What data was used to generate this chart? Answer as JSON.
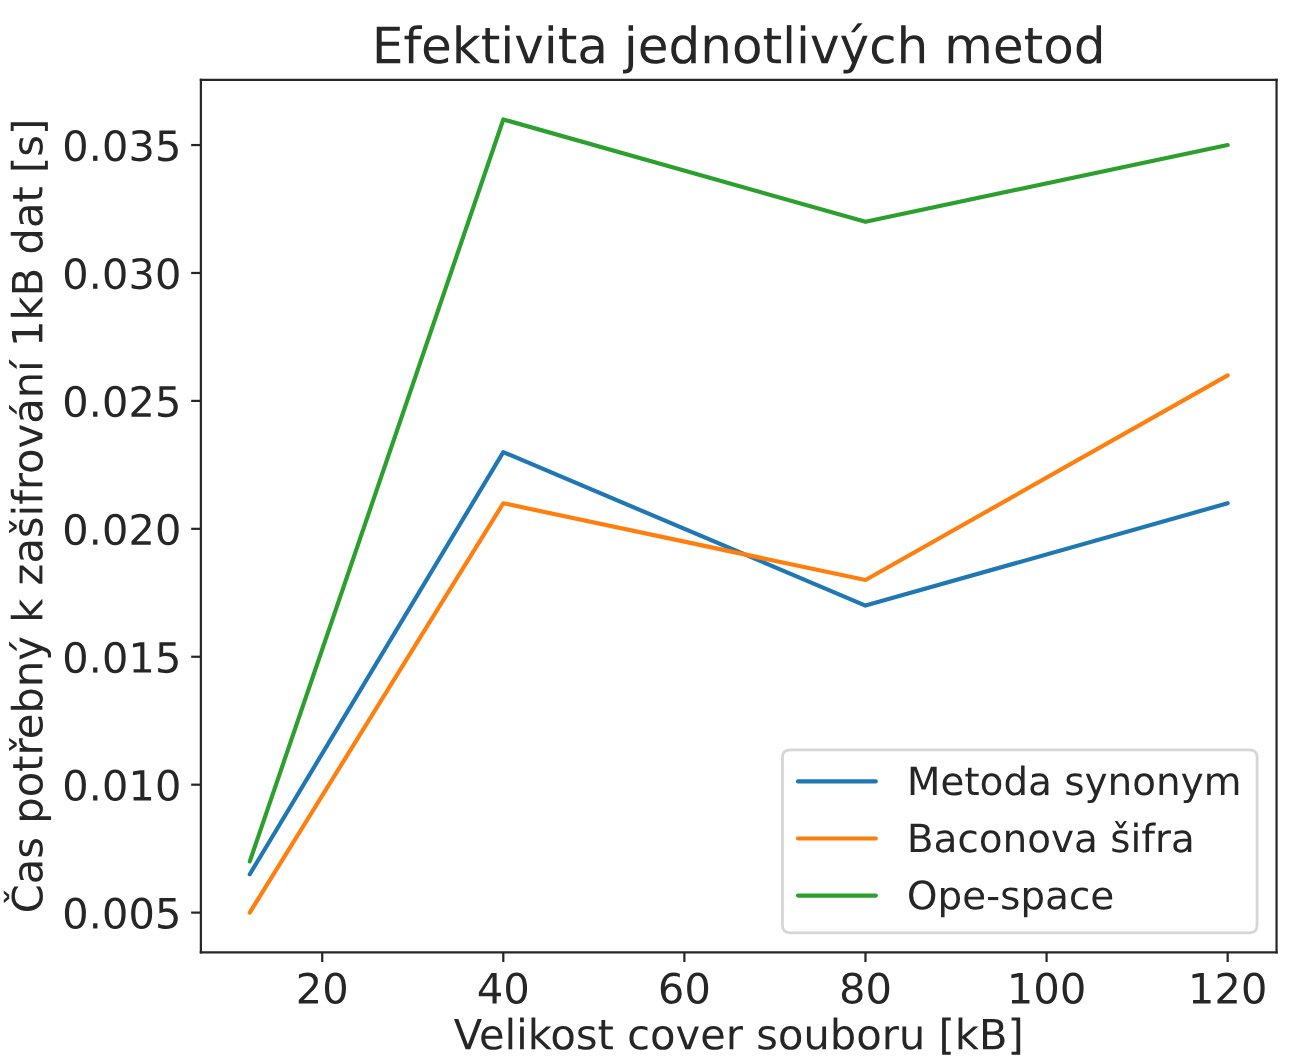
{
  "chart_data": {
    "type": "line",
    "title": "Efektivita jednotlivých metod",
    "xlabel": "Velikost cover souboru [kB]",
    "ylabel": "Čas potřebný k zašifrování 1kB dat [s]",
    "x": [
      12,
      40,
      80,
      120
    ],
    "series": [
      {
        "name": "Metoda synonym",
        "color": "#1f77b4",
        "values": [
          0.0065,
          0.023,
          0.017,
          0.021
        ]
      },
      {
        "name": "Baconova šifra",
        "color": "#ff7f0e",
        "values": [
          0.005,
          0.021,
          0.018,
          0.026
        ]
      },
      {
        "name": "Ope-space",
        "color": "#2ca02c",
        "values": [
          0.007,
          0.036,
          0.032,
          0.035
        ]
      }
    ],
    "xlim": [
      6.6,
      125.4
    ],
    "ylim": [
      0.00345,
      0.03755
    ],
    "xticks": [
      20,
      40,
      60,
      80,
      100,
      120
    ],
    "yticks": [
      {
        "value": 0.005,
        "label": "0.005"
      },
      {
        "value": 0.01,
        "label": "0.010"
      },
      {
        "value": 0.015,
        "label": "0.015"
      },
      {
        "value": 0.02,
        "label": "0.020"
      },
      {
        "value": 0.025,
        "label": "0.025"
      },
      {
        "value": 0.03,
        "label": "0.030"
      },
      {
        "value": 0.035,
        "label": "0.035"
      }
    ],
    "legend": "bottom right",
    "grid": false,
    "marker": "none",
    "line_style": "solid"
  }
}
